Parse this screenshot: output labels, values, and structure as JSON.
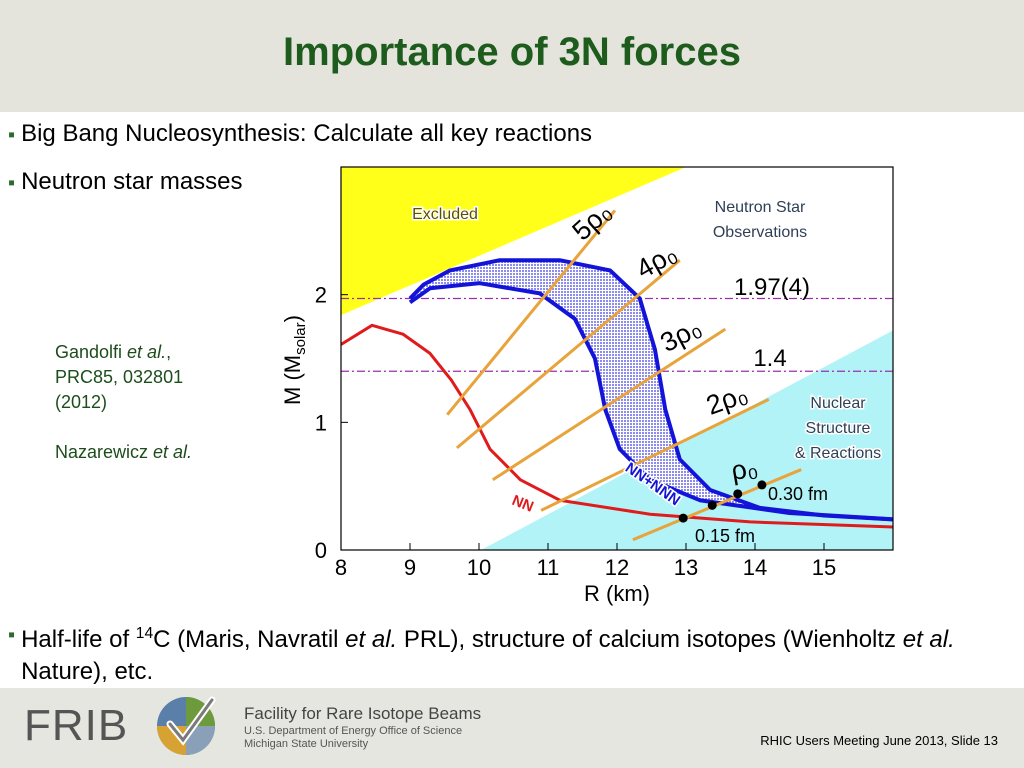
{
  "header": {
    "title": "Importance of 3N forces"
  },
  "bullets": [
    {
      "runs": [
        {
          "text": "Big Bang Nucleosynthesis: Calculate all key reactions"
        }
      ]
    },
    {
      "runs": [
        {
          "text": "Neutron star masses"
        }
      ]
    },
    {
      "runs": [
        {
          "text": "Half-life of "
        },
        {
          "text": "14",
          "style": "sup"
        },
        {
          "text": "C (Maris, Navratil "
        },
        {
          "text": "et al.",
          "style": "italic"
        },
        {
          "text": " PRL), structure of calcium isotopes (Wienholtz "
        },
        {
          "text": "et al.",
          "style": "italic"
        },
        {
          "text": " Nature), etc."
        }
      ]
    }
  ],
  "references": [
    {
      "lines": [
        {
          "runs": [
            {
              "text": "Gandolfi "
            },
            {
              "text": "et al.",
              "style": "italic"
            },
            {
              "text": ","
            }
          ]
        },
        {
          "runs": [
            {
              "text": "PRC85, 032801"
            }
          ]
        },
        {
          "runs": [
            {
              "text": "(2012)"
            }
          ]
        }
      ]
    },
    {
      "lines": [
        {
          "runs": [
            {
              "text": "Nazarewicz "
            },
            {
              "text": "et al.",
              "style": "italic"
            }
          ]
        }
      ]
    }
  ],
  "chart_data": {
    "type": "line",
    "xlabel": "R (km)",
    "ylabel": [
      {
        "text": "M (M"
      },
      {
        "text": "solar",
        "style": "sub"
      },
      {
        "text": ")"
      }
    ],
    "xlim": [
      8,
      16
    ],
    "ylim": [
      0,
      3
    ],
    "xticks": [
      8,
      9,
      10,
      11,
      12,
      13,
      14,
      15
    ],
    "yticks": [
      0,
      1,
      2
    ],
    "series": [
      {
        "name": "NN",
        "color": "#e01b1b",
        "x": [
          8.0,
          8.45,
          8.9,
          9.29,
          9.6,
          9.87,
          10.16,
          10.6,
          11.17,
          12.48,
          13.93,
          16.0
        ],
        "values": [
          1.61,
          1.76,
          1.69,
          1.54,
          1.33,
          1.1,
          0.79,
          0.55,
          0.39,
          0.28,
          0.22,
          0.18
        ]
      },
      {
        "name": "NN+NNN",
        "color": "#1414d8",
        "fill": "#8c8cf0",
        "x": [
          9.0,
          9.2,
          9.58,
          10.3,
          11.17,
          11.9,
          12.33,
          12.55,
          12.7,
          12.91,
          13.35,
          14.07,
          15.0,
          16.0
        ],
        "values": [
          1.97,
          2.08,
          2.19,
          2.27,
          2.27,
          2.19,
          1.97,
          1.57,
          1.1,
          0.71,
          0.47,
          0.33,
          0.27,
          0.24
        ],
        "x_inner": [
          9.0,
          9.29,
          10.01,
          10.88,
          11.39,
          11.68,
          11.83,
          12.04,
          12.48,
          13.2,
          14.5,
          16.0
        ],
        "inner": [
          1.94,
          2.05,
          2.09,
          2.01,
          1.81,
          1.5,
          1.1,
          0.79,
          0.55,
          0.39,
          0.29,
          0.24
        ]
      }
    ],
    "density_lines": {
      "color": "#e8a33a",
      "lines": [
        {
          "label": "5ρ₀",
          "x": [
            9.54,
            11.97
          ],
          "values": [
            1.06,
            2.66
          ]
        },
        {
          "label": "4ρ₀",
          "x": [
            9.68,
            12.91
          ],
          "values": [
            0.8,
            2.27
          ]
        },
        {
          "label": "3ρ₀",
          "x": [
            10.2,
            13.57
          ],
          "values": [
            0.55,
            1.73
          ]
        },
        {
          "label": "2ρ₀",
          "x": [
            10.9,
            14.2
          ],
          "values": [
            0.31,
            1.18
          ]
        },
        {
          "label": "ρ₀",
          "x": [
            12.23,
            14.67
          ],
          "values": [
            0.08,
            0.63
          ]
        }
      ]
    },
    "reference_lines": {
      "color": "#9b2fae",
      "lines": [
        {
          "value": 1.97,
          "label": "1.97(4)"
        },
        {
          "value": 1.4,
          "label": "1.4"
        }
      ]
    },
    "points": {
      "color": "#000000",
      "x": [
        12.96,
        13.38,
        13.75,
        14.1
      ],
      "values": [
        0.25,
        0.35,
        0.44,
        0.51
      ]
    },
    "point_labels": [
      "0.30 fm",
      "0.15 fm"
    ],
    "regions": [
      {
        "label": [
          "Excluded"
        ],
        "color": "#ffff1a",
        "x": [
          8,
          13,
          8
        ],
        "values": [
          3,
          3,
          1.84
        ]
      },
      {
        "label": [
          "Nuclear",
          "Structure",
          "& Reactions"
        ],
        "color": "#b2f3f7",
        "x": [
          10.03,
          16,
          16
        ],
        "values": [
          0,
          0,
          1.72
        ]
      }
    ],
    "annotations": [
      [
        "Neutron Star",
        "Observations"
      ]
    ]
  },
  "footer": {
    "logo_text": "FRIB",
    "org": "Facility for Rare Isotope Beams",
    "lines": [
      "U.S. Department of Energy Office of Science",
      "Michigan State University"
    ],
    "slide_ref": "RHIC Users Meeting June 2013, Slide 13"
  }
}
